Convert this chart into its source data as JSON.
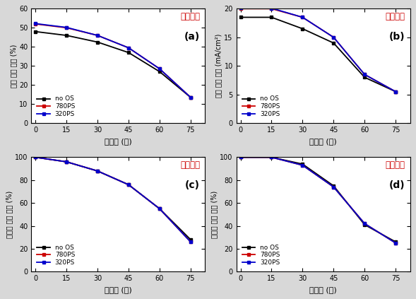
{
  "x": [
    0,
    15,
    30,
    45,
    60,
    75
  ],
  "panel_a": {
    "title": "전산모사",
    "label": "(a)",
    "ylabel": "광자 흥수 비율 (%)",
    "xlabel": "입사각 (도)",
    "ylim": [
      0,
      60
    ],
    "yticks": [
      0,
      10,
      20,
      30,
      40,
      50,
      60
    ],
    "no_OS": [
      48.0,
      46.0,
      42.5,
      37.0,
      27.0,
      13.5
    ],
    "780PS": [
      52.0,
      50.0,
      46.0,
      39.5,
      28.5,
      13.5
    ],
    "320PS": [
      52.2,
      50.2,
      46.0,
      39.5,
      28.5,
      13.5
    ]
  },
  "panel_b": {
    "title": "실험결과",
    "label": "(b)",
    "ylabel": "단락 전류 밀도 (mA/cm²)",
    "xlabel": "입사각 (도)",
    "ylim": [
      0,
      20
    ],
    "yticks": [
      0,
      5,
      10,
      15,
      20
    ],
    "no_OS": [
      18.5,
      18.5,
      16.5,
      14.0,
      8.0,
      5.5
    ],
    "780PS": [
      20.0,
      20.0,
      18.5,
      15.0,
      8.5,
      5.5
    ],
    "320PS": [
      20.2,
      20.1,
      18.5,
      15.0,
      8.5,
      5.5
    ]
  },
  "panel_c": {
    "title": "전산모사",
    "label": "(c)",
    "ylabel": "각도에 따른 성능 (%)",
    "xlabel": "입사각 (도)",
    "ylim": [
      0,
      100
    ],
    "yticks": [
      0,
      20,
      40,
      60,
      80,
      100
    ],
    "no_OS": [
      100,
      96,
      88,
      76,
      55,
      28
    ],
    "780PS": [
      100,
      96,
      88,
      76,
      55,
      26
    ],
    "320PS": [
      100,
      96,
      88,
      76,
      55,
      26
    ]
  },
  "panel_d": {
    "title": "실험결과",
    "label": "(d)",
    "ylabel": "각도에 따른 성능 (%)",
    "xlabel": "입사각 (도)",
    "ylim": [
      0,
      100
    ],
    "yticks": [
      0,
      20,
      40,
      60,
      80,
      100
    ],
    "no_OS": [
      100,
      100,
      94,
      75,
      41,
      26
    ],
    "780PS": [
      100,
      100,
      93,
      74,
      42,
      25
    ],
    "320PS": [
      100,
      100,
      93,
      74,
      42,
      25
    ]
  },
  "colors": {
    "no_OS": "#000000",
    "780PS": "#cc0000",
    "320PS": "#0000cc"
  },
  "title_color": "#cc0000",
  "bg_color": "#d8d8d8"
}
